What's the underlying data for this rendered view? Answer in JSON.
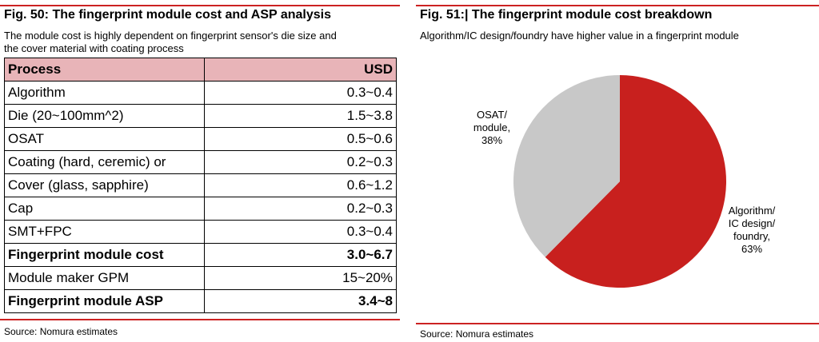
{
  "left": {
    "title": "Fig. 50: The fingerprint module cost and ASP analysis",
    "subtitle_line1": "The module cost is highly dependent on fingerprint sensor's die size and",
    "subtitle_line2": "the cover material with coating process",
    "table": {
      "headers": [
        "Process",
        "USD"
      ],
      "rows": [
        {
          "process": "Algorithm",
          "usd": "0.3~0.4",
          "bold": false
        },
        {
          "process": "Die (20~100mm^2)",
          "usd": "1.5~3.8",
          "bold": false
        },
        {
          "process": "OSAT",
          "usd": "0.5~0.6",
          "bold": false
        },
        {
          "process": "Coating (hard, ceremic) or",
          "usd": "0.2~0.3",
          "bold": false
        },
        {
          "process": "Cover (glass, sapphire)",
          "usd": "0.6~1.2",
          "bold": false
        },
        {
          "process": "Cap",
          "usd": "0.2~0.3",
          "bold": false
        },
        {
          "process": "SMT+FPC",
          "usd": "0.3~0.4",
          "bold": false
        },
        {
          "process": "Fingerprint module cost",
          "usd": "3.0~6.7",
          "bold": true
        },
        {
          "process": "Module maker GPM",
          "usd": "15~20%",
          "bold": false
        },
        {
          "process": "Fingerprint module ASP",
          "usd": "3.4~8",
          "bold": true
        }
      ]
    },
    "source": "Source: Nomura estimates"
  },
  "right": {
    "title": "Fig. 51:| The fingerprint module cost breakdown",
    "subtitle": "Algorithm/IC design/foundry have higher value in a fingerprint module",
    "source": "Source: Nomura estimates"
  },
  "colors": {
    "accent_line": "#cc2222",
    "header_fill": "#e8b4b8",
    "slice_red": "#c8201e",
    "slice_grey": "#c8c8c8"
  },
  "chart_data": {
    "type": "pie",
    "title": "",
    "slices": [
      {
        "label_lines": [
          "Algorithm/",
          "IC design/",
          "foundry,",
          "63%"
        ],
        "value": 63,
        "color": "#c8201e"
      },
      {
        "label_lines": [
          "OSAT/",
          "module,",
          "38%"
        ],
        "value": 38,
        "color": "#c8c8c8"
      }
    ],
    "start": "top",
    "direction": "clockwise"
  }
}
